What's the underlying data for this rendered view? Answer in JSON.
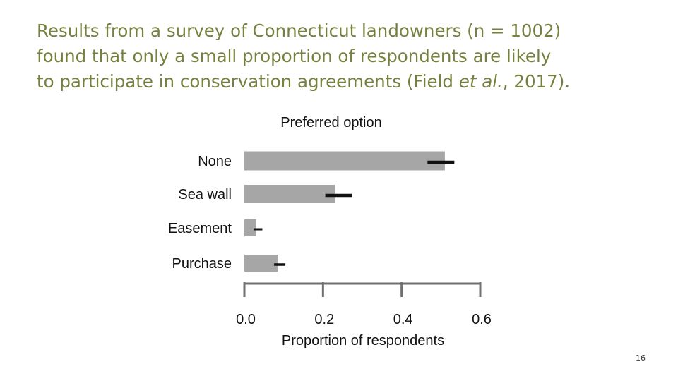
{
  "slide": {
    "title_lines": [
      {
        "before": "Results from a survey of Connecticut landowners (n = 1002)",
        "italic": "",
        "after": ""
      },
      {
        "before": "found that only a small proportion of respondents are likely",
        "italic": "",
        "after": ""
      },
      {
        "before": "to participate in conservation agreements (Field ",
        "italic": "et al.",
        "after": ", 2017)."
      }
    ],
    "page_number": "16"
  },
  "chart_data": {
    "type": "bar",
    "orientation": "horizontal",
    "title": "Preferred option",
    "xlabel": "Proportion of respondents",
    "ylabel": "",
    "categories": [
      "None",
      "Sea wall",
      "Easement",
      "Purchase"
    ],
    "series": [
      {
        "name": "",
        "values": [
          0.51,
          0.23,
          0.03,
          0.085
        ],
        "markers": [
          0.5,
          0.24,
          0.035,
          0.09
        ]
      }
    ],
    "xlim": [
      0,
      0.6
    ],
    "xticks": [
      0.0,
      0.2,
      0.4,
      0.6
    ],
    "xtick_labels": [
      "0.0",
      "0.2",
      "0.4",
      "0.6"
    ],
    "grid": false,
    "legend": "none",
    "colors": {
      "bar": "#a6a6a6",
      "marker": "#111111",
      "axis": "#707070"
    }
  }
}
